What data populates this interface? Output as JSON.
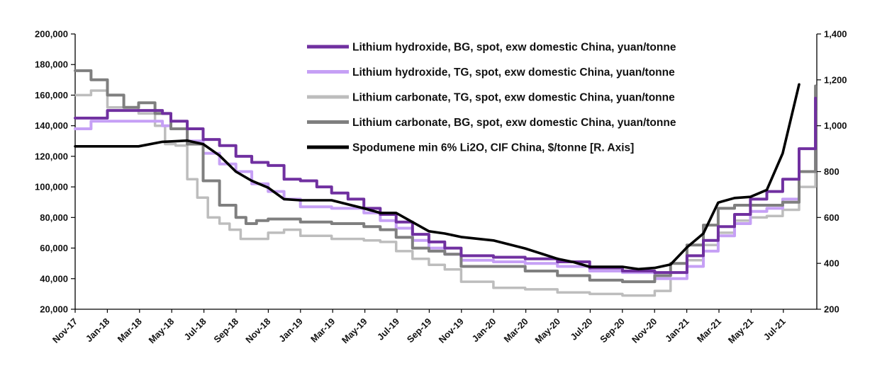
{
  "chart_data": {
    "type": "line",
    "x_ticks": [
      "Nov-17",
      "Jan-18",
      "Mar-18",
      "May-18",
      "Jul-18",
      "Sep-18",
      "Nov-18",
      "Jan-19",
      "Mar-19",
      "May-19",
      "Jul-19",
      "Sep-19",
      "Nov-19",
      "Jan-20",
      "Mar-20",
      "May-20",
      "Jul-20",
      "Sep-20",
      "Nov-20",
      "Jan-21",
      "Mar-21",
      "May-21",
      "Jul-21"
    ],
    "y_left": {
      "range": [
        20000,
        200000
      ],
      "ticks": [
        "20,000",
        "40,000",
        "60,000",
        "80,000",
        "100,000",
        "120,000",
        "140,000",
        "160,000",
        "180,000",
        "200,000"
      ],
      "tick_values": [
        20000,
        40000,
        60000,
        80000,
        100000,
        120000,
        140000,
        160000,
        180000,
        200000
      ]
    },
    "y_right": {
      "range": [
        200,
        1400
      ],
      "ticks": [
        "200",
        "400",
        "600",
        "800",
        "1,000",
        "1,200",
        "1,400"
      ],
      "tick_values": [
        200,
        400,
        600,
        800,
        1000,
        1200,
        1400
      ]
    },
    "legend_position": "top-right",
    "grid": false,
    "series": [
      {
        "name": "Lithium hydroxide, BG, spot, exw domestic China, yuan/tonne",
        "axis": "left",
        "color": "#7030a0",
        "points": [
          [
            "2017-11-01",
            145000
          ],
          [
            "2018-01-01",
            150000
          ],
          [
            "2018-03-01",
            150000
          ],
          [
            "2018-04-15",
            148000
          ],
          [
            "2018-05-01",
            143000
          ],
          [
            "2018-06-01",
            138000
          ],
          [
            "2018-07-01",
            131000
          ],
          [
            "2018-08-01",
            127000
          ],
          [
            "2018-09-01",
            120000
          ],
          [
            "2018-10-01",
            116000
          ],
          [
            "2018-11-01",
            114000
          ],
          [
            "2018-12-01",
            105000
          ],
          [
            "2019-01-01",
            104000
          ],
          [
            "2019-02-01",
            100000
          ],
          [
            "2019-03-01",
            96000
          ],
          [
            "2019-04-01",
            92000
          ],
          [
            "2019-05-01",
            86000
          ],
          [
            "2019-06-01",
            82000
          ],
          [
            "2019-07-01",
            77000
          ],
          [
            "2019-08-01",
            69000
          ],
          [
            "2019-09-01",
            64000
          ],
          [
            "2019-10-01",
            60000
          ],
          [
            "2019-11-01",
            55000
          ],
          [
            "2020-01-01",
            54000
          ],
          [
            "2020-03-01",
            53000
          ],
          [
            "2020-05-01",
            51000
          ],
          [
            "2020-07-01",
            47000
          ],
          [
            "2020-09-01",
            45000
          ],
          [
            "2020-11-01",
            44000
          ],
          [
            "2021-01-01",
            55000
          ],
          [
            "2021-02-01",
            65000
          ],
          [
            "2021-03-01",
            74000
          ],
          [
            "2021-04-01",
            82000
          ],
          [
            "2021-05-01",
            92000
          ],
          [
            "2021-06-01",
            97000
          ],
          [
            "2021-07-01",
            105000
          ],
          [
            "2021-08-01",
            125000
          ],
          [
            "2021-09-01",
            158000
          ]
        ]
      },
      {
        "name": "Lithium hydroxide, TG, spot, exw domestic China, yuan/tonne",
        "axis": "left",
        "color": "#c6a0f5",
        "points": [
          [
            "2017-11-01",
            138000
          ],
          [
            "2017-12-01",
            143000
          ],
          [
            "2018-03-01",
            143000
          ],
          [
            "2018-04-15",
            140000
          ],
          [
            "2018-05-01",
            138000
          ],
          [
            "2018-06-01",
            130000
          ],
          [
            "2018-07-01",
            122000
          ],
          [
            "2018-08-01",
            115000
          ],
          [
            "2018-09-01",
            110000
          ],
          [
            "2018-10-01",
            102000
          ],
          [
            "2018-11-01",
            97000
          ],
          [
            "2018-12-01",
            92000
          ],
          [
            "2019-01-01",
            87000
          ],
          [
            "2019-03-01",
            86000
          ],
          [
            "2019-05-01",
            83000
          ],
          [
            "2019-06-01",
            78000
          ],
          [
            "2019-07-01",
            73000
          ],
          [
            "2019-08-01",
            65000
          ],
          [
            "2019-09-01",
            60000
          ],
          [
            "2019-10-01",
            56000
          ],
          [
            "2019-11-01",
            52000
          ],
          [
            "2020-01-01",
            51000
          ],
          [
            "2020-03-01",
            50000
          ],
          [
            "2020-05-01",
            48000
          ],
          [
            "2020-07-01",
            45000
          ],
          [
            "2020-09-01",
            44000
          ],
          [
            "2020-11-01",
            40000
          ],
          [
            "2021-01-01",
            48000
          ],
          [
            "2021-02-01",
            58000
          ],
          [
            "2021-03-01",
            68000
          ],
          [
            "2021-04-01",
            76000
          ],
          [
            "2021-05-01",
            84000
          ],
          [
            "2021-06-01",
            86000
          ],
          [
            "2021-07-01",
            92000
          ],
          [
            "2021-08-01",
            110000
          ],
          [
            "2021-09-01",
            150000
          ]
        ]
      },
      {
        "name": "Lithium carbonate, TG, spot, exw domestic China, yuan/tonne",
        "axis": "left",
        "color": "#bdbdbd",
        "points": [
          [
            "2017-11-01",
            160000
          ],
          [
            "2017-12-01",
            163000
          ],
          [
            "2018-01-01",
            152000
          ],
          [
            "2018-03-01",
            148000
          ],
          [
            "2018-04-01",
            140000
          ],
          [
            "2018-04-20",
            128000
          ],
          [
            "2018-05-10",
            127000
          ],
          [
            "2018-06-01",
            105000
          ],
          [
            "2018-06-20",
            93000
          ],
          [
            "2018-07-10",
            80000
          ],
          [
            "2018-08-01",
            76000
          ],
          [
            "2018-08-20",
            72000
          ],
          [
            "2018-09-10",
            66000
          ],
          [
            "2018-10-10",
            66000
          ],
          [
            "2018-11-01",
            70000
          ],
          [
            "2018-12-01",
            72000
          ],
          [
            "2019-01-01",
            68000
          ],
          [
            "2019-03-01",
            66000
          ],
          [
            "2019-05-01",
            65000
          ],
          [
            "2019-06-01",
            64000
          ],
          [
            "2019-07-01",
            58000
          ],
          [
            "2019-08-01",
            53000
          ],
          [
            "2019-09-01",
            49000
          ],
          [
            "2019-10-01",
            46000
          ],
          [
            "2019-11-01",
            38000
          ],
          [
            "2020-01-01",
            34000
          ],
          [
            "2020-03-01",
            33000
          ],
          [
            "2020-05-01",
            31000
          ],
          [
            "2020-07-01",
            30000
          ],
          [
            "2020-09-01",
            29000
          ],
          [
            "2020-11-01",
            32000
          ],
          [
            "2020-12-01",
            40000
          ],
          [
            "2021-01-01",
            52000
          ],
          [
            "2021-02-01",
            62000
          ],
          [
            "2021-03-01",
            70000
          ],
          [
            "2021-04-01",
            78000
          ],
          [
            "2021-05-01",
            80000
          ],
          [
            "2021-06-01",
            81000
          ],
          [
            "2021-07-01",
            85000
          ],
          [
            "2021-08-01",
            100000
          ],
          [
            "2021-09-01",
            162000
          ]
        ]
      },
      {
        "name": "Lithium carbonate, BG, spot, exw domestic China, yuan/tonne",
        "axis": "left",
        "color": "#7f7f7f",
        "points": [
          [
            "2017-11-01",
            176000
          ],
          [
            "2017-12-01",
            170000
          ],
          [
            "2018-01-01",
            160000
          ],
          [
            "2018-02-01",
            152000
          ],
          [
            "2018-03-01",
            155000
          ],
          [
            "2018-04-01",
            148000
          ],
          [
            "2018-05-01",
            138000
          ],
          [
            "2018-06-01",
            128000
          ],
          [
            "2018-07-01",
            104000
          ],
          [
            "2018-08-01",
            88000
          ],
          [
            "2018-09-01",
            80000
          ],
          [
            "2018-09-20",
            76000
          ],
          [
            "2018-10-10",
            78000
          ],
          [
            "2018-11-01",
            79000
          ],
          [
            "2019-01-01",
            77000
          ],
          [
            "2019-03-01",
            76000
          ],
          [
            "2019-05-01",
            74000
          ],
          [
            "2019-06-01",
            72000
          ],
          [
            "2019-07-01",
            67000
          ],
          [
            "2019-08-01",
            60000
          ],
          [
            "2019-09-01",
            58000
          ],
          [
            "2019-10-01",
            56000
          ],
          [
            "2019-11-01",
            48000
          ],
          [
            "2020-01-01",
            48000
          ],
          [
            "2020-03-01",
            45000
          ],
          [
            "2020-05-01",
            42000
          ],
          [
            "2020-07-01",
            39000
          ],
          [
            "2020-09-01",
            38000
          ],
          [
            "2020-11-01",
            42000
          ],
          [
            "2020-12-01",
            50000
          ],
          [
            "2021-01-01",
            62000
          ],
          [
            "2021-02-01",
            75000
          ],
          [
            "2021-03-01",
            86000
          ],
          [
            "2021-04-01",
            88000
          ],
          [
            "2021-05-01",
            88000
          ],
          [
            "2021-06-01",
            88000
          ],
          [
            "2021-07-01",
            90000
          ],
          [
            "2021-08-01",
            110000
          ],
          [
            "2021-09-01",
            166000
          ]
        ]
      },
      {
        "name": "Spodumene min 6% Li2O, CIF China, $/tonne [R. Axis]",
        "axis": "right",
        "color": "#000000",
        "points": [
          [
            "2017-11-01",
            910
          ],
          [
            "2018-03-01",
            910
          ],
          [
            "2018-04-15",
            930
          ],
          [
            "2018-06-01",
            935
          ],
          [
            "2018-07-01",
            920
          ],
          [
            "2018-08-01",
            870
          ],
          [
            "2018-09-01",
            800
          ],
          [
            "2018-10-01",
            760
          ],
          [
            "2018-11-01",
            730
          ],
          [
            "2018-12-01",
            680
          ],
          [
            "2019-01-01",
            675
          ],
          [
            "2019-03-01",
            675
          ],
          [
            "2019-05-01",
            640
          ],
          [
            "2019-06-01",
            620
          ],
          [
            "2019-07-01",
            620
          ],
          [
            "2019-09-01",
            540
          ],
          [
            "2019-10-01",
            530
          ],
          [
            "2019-11-01",
            515
          ],
          [
            "2020-01-01",
            500
          ],
          [
            "2020-03-01",
            465
          ],
          [
            "2020-05-01",
            420
          ],
          [
            "2020-06-01",
            405
          ],
          [
            "2020-07-01",
            385
          ],
          [
            "2020-09-01",
            385
          ],
          [
            "2020-10-01",
            375
          ],
          [
            "2020-11-01",
            380
          ],
          [
            "2020-12-01",
            395
          ],
          [
            "2021-01-01",
            470
          ],
          [
            "2021-02-01",
            530
          ],
          [
            "2021-03-01",
            665
          ],
          [
            "2021-04-01",
            685
          ],
          [
            "2021-05-01",
            690
          ],
          [
            "2021-06-01",
            720
          ],
          [
            "2021-07-01",
            880
          ],
          [
            "2021-08-01",
            1180
          ]
        ]
      }
    ]
  }
}
